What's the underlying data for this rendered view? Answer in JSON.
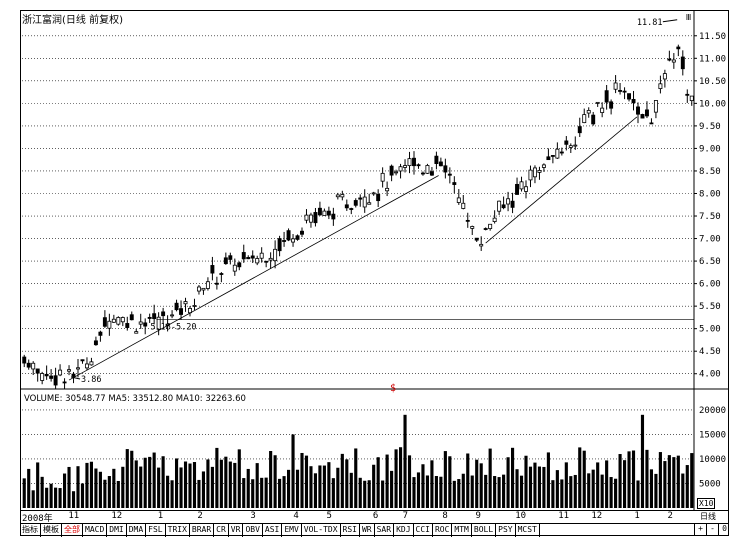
{
  "title": "浙江富润(日线 前复权)",
  "volume_legend": "VOLUME: 30548.77  MA5: 33512.80  MA10: 32263.60",
  "multiplier_label": "X10",
  "period_label": "日线",
  "toggle_symbol": "Ⅲ",
  "price_axis": [
    "11.50",
    "11.00",
    "10.50",
    "10.00",
    "9.50",
    "9.00",
    "8.50",
    "8.00",
    "7.50",
    "7.00",
    "6.50",
    "6.00",
    "5.50",
    "5.00",
    "4.50",
    "4.00"
  ],
  "volume_axis": [
    "20000",
    "15000",
    "10000",
    "5000"
  ],
  "date_labels": [
    {
      "text": "2008年",
      "pos": 0.0
    },
    {
      "text": "11",
      "pos": 0.07
    },
    {
      "text": "12",
      "pos": 0.135
    },
    {
      "text": "1",
      "pos": 0.205
    },
    {
      "text": "2",
      "pos": 0.265
    },
    {
      "text": "3",
      "pos": 0.345
    },
    {
      "text": "4",
      "pos": 0.41
    },
    {
      "text": "5",
      "pos": 0.46
    },
    {
      "text": "6",
      "pos": 0.53
    },
    {
      "text": "7",
      "pos": 0.575
    },
    {
      "text": "8",
      "pos": 0.635
    },
    {
      "text": "9",
      "pos": 0.685
    },
    {
      "text": "10",
      "pos": 0.745
    },
    {
      "text": "11",
      "pos": 0.81
    },
    {
      "text": "12",
      "pos": 0.86
    },
    {
      "text": "1",
      "pos": 0.925
    },
    {
      "text": "2",
      "pos": 0.975
    }
  ],
  "tabs": [
    "指标",
    "模板",
    "全部",
    "MACD",
    "DMI",
    "DMA",
    "FSL",
    "TRIX",
    "BRAR",
    "CR",
    "VR",
    "OBV",
    "ASI",
    "EMV",
    "VOL-TDX",
    "RSI",
    "WR",
    "SAR",
    "KDJ",
    "CCI",
    "ROC",
    "MTM",
    "BOLL",
    "PSY",
    "MCST"
  ],
  "active_tab": "全部",
  "right_controls": [
    "+",
    "-",
    "0"
  ],
  "annotations": {
    "low_label": "3.86",
    "mid_label": "5.18-5.20",
    "high_label": "11.81",
    "marker_symbol": "$"
  },
  "colors": {
    "candle": "#000000",
    "grid": "#000000",
    "marker": "#cc0000",
    "active_tab": "#dd0000"
  },
  "chart_data": {
    "type": "candlestick",
    "price_ylim": [
      3.75,
      11.85
    ],
    "volume_ylim": [
      0,
      21000
    ],
    "support_lines": [
      {
        "from": [
          0.07,
          3.86
        ],
        "to": [
          0.62,
          8.4
        ]
      },
      {
        "from": [
          0.69,
          6.9
        ],
        "to": [
          0.915,
          9.7
        ]
      }
    ],
    "horizontal_line": 5.2,
    "key_prices": {
      "low": 3.86,
      "mid": 5.19,
      "high": 11.81
    }
  }
}
